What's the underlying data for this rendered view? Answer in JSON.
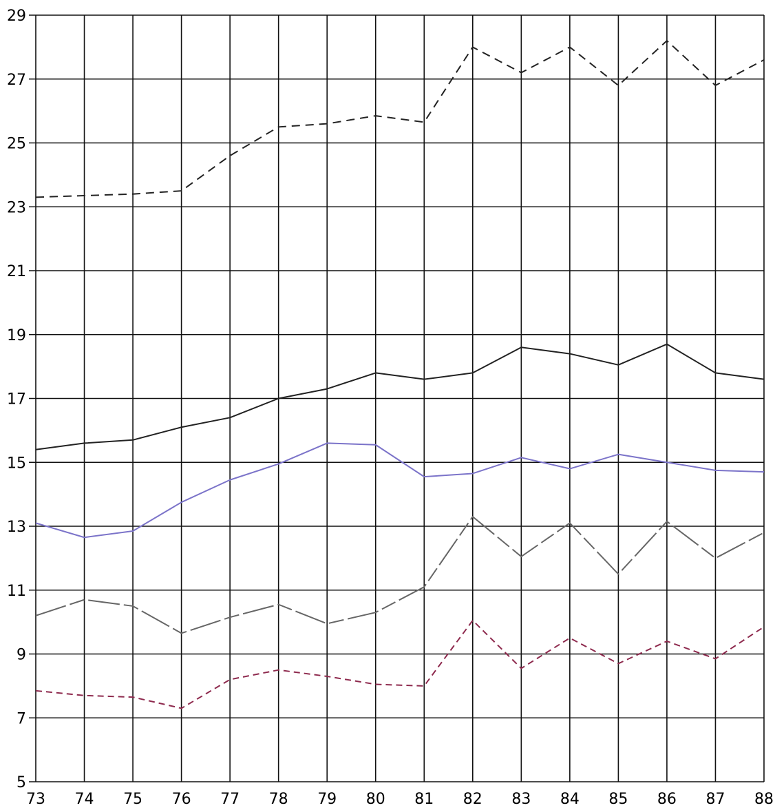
{
  "chart_data": {
    "type": "line",
    "title": "",
    "xlabel": "",
    "ylabel": "",
    "x": [
      "73",
      "74",
      "75",
      "76",
      "77",
      "78",
      "79",
      "80",
      "81",
      "82",
      "83",
      "84",
      "85",
      "86",
      "87",
      "88"
    ],
    "y_ticks": [
      "5",
      "7",
      "9",
      "11",
      "13",
      "15",
      "17",
      "19",
      "21",
      "23",
      "25",
      "27",
      "29"
    ],
    "xlim": [
      73,
      88
    ],
    "ylim": [
      5,
      29
    ],
    "grid": true,
    "legend": "none",
    "series": [
      {
        "color": "#222222",
        "dash": "12 8",
        "values": [
          23.3,
          23.35,
          23.4,
          23.5,
          24.6,
          25.5,
          25.6,
          25.85,
          25.65,
          28.0,
          27.2,
          28.0,
          26.8,
          28.2,
          26.8,
          27.6
        ]
      },
      {
        "color": "#222222",
        "dash": "",
        "values": [
          15.4,
          15.6,
          15.7,
          16.1,
          16.4,
          17.0,
          17.3,
          17.8,
          17.6,
          17.8,
          18.6,
          18.4,
          18.05,
          18.7,
          17.8,
          17.6
        ]
      },
      {
        "color": "#7b73c9",
        "dash": "",
        "values": [
          13.1,
          12.65,
          12.85,
          13.75,
          14.45,
          14.95,
          15.6,
          15.55,
          14.55,
          14.65,
          15.15,
          14.8,
          15.25,
          15.0,
          14.75,
          14.7
        ]
      },
      {
        "color": "#666666",
        "dash": "46 6 22 6",
        "values": [
          10.2,
          10.7,
          10.5,
          9.65,
          10.15,
          10.55,
          9.95,
          10.3,
          11.1,
          13.3,
          12.05,
          13.1,
          11.5,
          13.15,
          12.0,
          12.8
        ]
      },
      {
        "color": "#8e2a4e",
        "dash": "9 6",
        "values": [
          7.85,
          7.7,
          7.65,
          7.3,
          8.2,
          8.5,
          8.3,
          8.05,
          8.0,
          10.05,
          8.55,
          9.5,
          8.7,
          9.4,
          8.85,
          9.85
        ]
      }
    ]
  }
}
